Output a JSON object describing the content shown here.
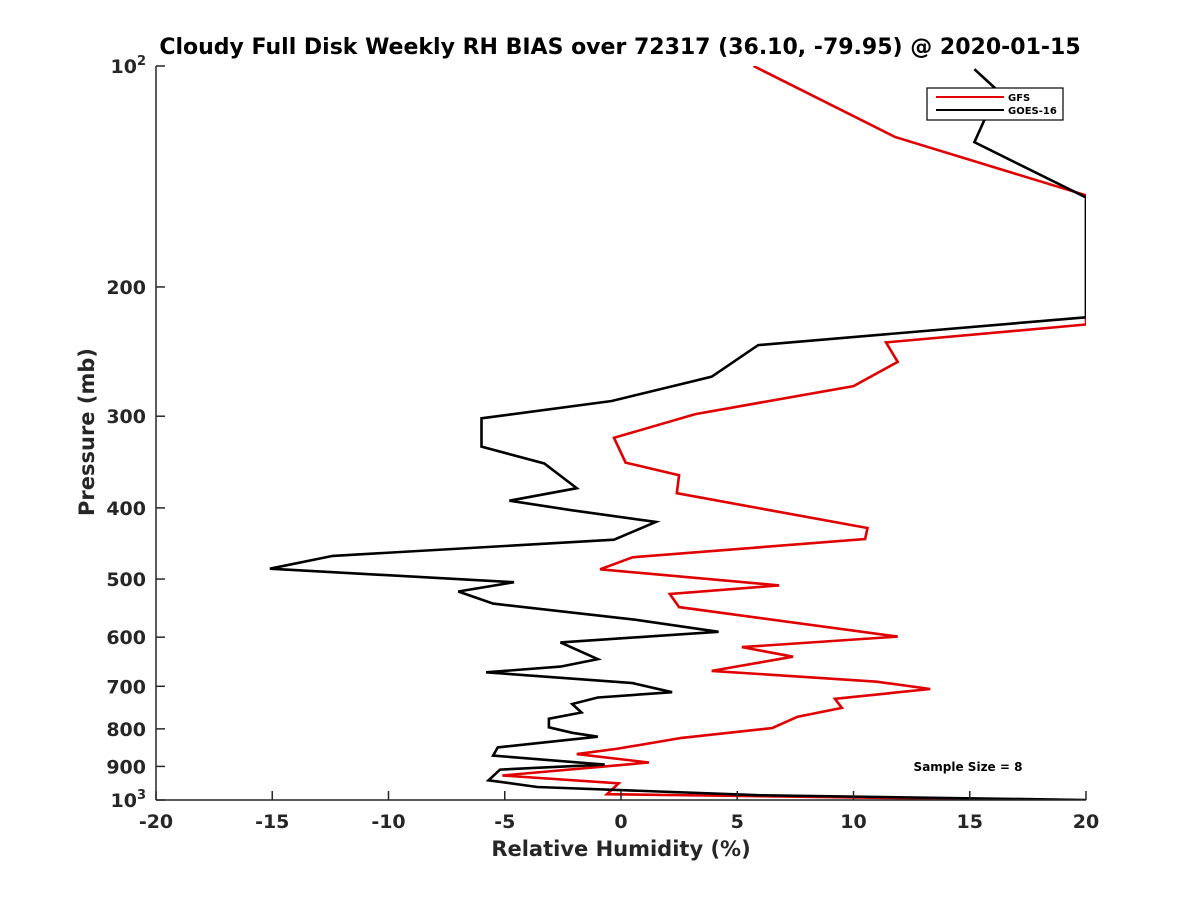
{
  "chart_data": {
    "type": "line",
    "title": "Cloudy Full Disk Weekly RH BIAS over 72317 (36.10, -79.95) @ 2020-01-15",
    "xlabel": "Relative Humidity (%)",
    "ylabel": "Pressure (mb)",
    "xlim": [
      -20,
      20
    ],
    "ylim": [
      100,
      1000
    ],
    "y_scale": "log",
    "y_reversed": true,
    "x_ticks": [
      "-20",
      "-15",
      "-10",
      "-5",
      "0",
      "5",
      "10",
      "15",
      "20"
    ],
    "y_ticks": [
      {
        "value": 100,
        "base": "10",
        "exp": "2"
      },
      {
        "value": 200,
        "label": "200"
      },
      {
        "value": 300,
        "label": "300"
      },
      {
        "value": 400,
        "label": "400"
      },
      {
        "value": 500,
        "label": "500"
      },
      {
        "value": 600,
        "label": "600"
      },
      {
        "value": 700,
        "label": "700"
      },
      {
        "value": 800,
        "label": "800"
      },
      {
        "value": 900,
        "label": "900"
      },
      {
        "value": 1000,
        "base": "10",
        "exp": "3"
      }
    ],
    "legend_position": "top-right",
    "grid": false,
    "annotation": "Sample Size = 8",
    "series": [
      {
        "name": "GFS",
        "color": "#e00000",
        "points": [
          [
            5.7,
            100
          ],
          [
            11.8,
            125
          ],
          [
            20.0,
            150
          ],
          [
            20.0,
            225
          ],
          [
            11.4,
            238
          ],
          [
            11.9,
            253
          ],
          [
            10.0,
            273
          ],
          [
            3.2,
            298
          ],
          [
            -0.3,
            321
          ],
          [
            0.2,
            347
          ],
          [
            2.5,
            361
          ],
          [
            2.4,
            382
          ],
          [
            10.6,
            426
          ],
          [
            10.5,
            441
          ],
          [
            0.5,
            467
          ],
          [
            -0.9,
            485
          ],
          [
            6.8,
            510
          ],
          [
            2.1,
            524
          ],
          [
            2.5,
            546
          ],
          [
            11.9,
            599
          ],
          [
            5.2,
            619
          ],
          [
            7.4,
            638
          ],
          [
            3.9,
            667
          ],
          [
            11.0,
            690
          ],
          [
            13.3,
            706
          ],
          [
            9.2,
            728
          ],
          [
            9.5,
            749
          ],
          [
            7.6,
            770
          ],
          [
            6.5,
            798
          ],
          [
            2.6,
            823
          ],
          [
            -0.2,
            852
          ],
          [
            -1.9,
            866
          ],
          [
            1.2,
            889
          ],
          [
            -5.1,
            926
          ],
          [
            -0.1,
            949
          ],
          [
            -0.6,
            982
          ],
          [
            18.3,
            1000
          ]
        ]
      },
      {
        "name": "GOES-16",
        "color": "#000000",
        "points": [
          [
            15.2,
            101
          ],
          [
            16.2,
            108
          ],
          [
            15.2,
            127
          ],
          [
            20.0,
            151
          ],
          [
            20.0,
            220
          ],
          [
            5.9,
            240
          ],
          [
            3.9,
            265
          ],
          [
            -0.4,
            286
          ],
          [
            -6.0,
            302
          ],
          [
            -6.0,
            330
          ],
          [
            -3.3,
            348
          ],
          [
            -1.9,
            376
          ],
          [
            -4.8,
            391
          ],
          [
            -2.1,
            403
          ],
          [
            1.5,
            418
          ],
          [
            -0.3,
            442
          ],
          [
            -12.4,
            465
          ],
          [
            -15.1,
            484
          ],
          [
            -4.6,
            505
          ],
          [
            -7.0,
            520
          ],
          [
            -5.5,
            540
          ],
          [
            0.6,
            568
          ],
          [
            4.2,
            590
          ],
          [
            -2.6,
            610
          ],
          [
            -1.0,
            643
          ],
          [
            -2.6,
            658
          ],
          [
            -5.8,
            670
          ],
          [
            0.5,
            693
          ],
          [
            2.2,
            713
          ],
          [
            -1.0,
            725
          ],
          [
            -2.1,
            740
          ],
          [
            -1.7,
            760
          ],
          [
            -3.1,
            775
          ],
          [
            -3.1,
            796
          ],
          [
            -2.1,
            810
          ],
          [
            -1.0,
            820
          ],
          [
            -5.3,
            848
          ],
          [
            -5.5,
            870
          ],
          [
            -0.7,
            895
          ],
          [
            -5.2,
            909
          ],
          [
            -5.7,
            940
          ],
          [
            -3.6,
            960
          ],
          [
            5.9,
            985
          ],
          [
            20.0,
            1000
          ]
        ]
      }
    ]
  }
}
